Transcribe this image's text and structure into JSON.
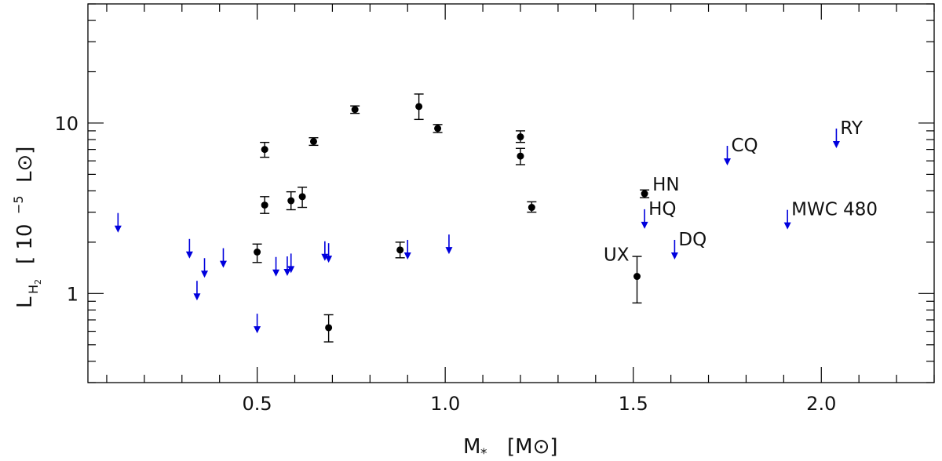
{
  "chart_data": {
    "type": "scatter",
    "xlabel": "M* [M⊙]",
    "xlabel_parts": {
      "main": "M",
      "sub": "*",
      "unit": "[M⊙]"
    },
    "ylabel": "L_H2 [ 10^-5 L⊙]",
    "ylabel_parts": {
      "main": "L",
      "sub": "H",
      "subsub": "2",
      "unit_open": "[ 10",
      "exp": "−5",
      "unit_close": "L⊙]"
    },
    "xlim": [
      0.05,
      2.3
    ],
    "ylim": [
      0.3,
      50
    ],
    "yscale": "log",
    "x_major_ticks": [
      0.5,
      1.0,
      1.5,
      2.0
    ],
    "x_tick_labels": [
      "0.5",
      "1.0",
      "1.5",
      "2.0"
    ],
    "x_minor_step": 0.1,
    "y_major_ticks": [
      1,
      10
    ],
    "y_tick_labels": [
      "1",
      "10"
    ],
    "colors": {
      "detection": "#000000",
      "upper_limit": "#0000dd",
      "axis": "#000000"
    },
    "series": [
      {
        "kind": "detection",
        "points": [
          {
            "x": 0.52,
            "y": 7.0,
            "ylo": 6.3,
            "yhi": 7.7
          },
          {
            "x": 0.52,
            "y": 3.3,
            "ylo": 2.95,
            "yhi": 3.7
          },
          {
            "x": 0.5,
            "y": 1.75,
            "ylo": 1.52,
            "yhi": 1.95
          },
          {
            "x": 0.59,
            "y": 3.5,
            "ylo": 3.1,
            "yhi": 3.95
          },
          {
            "x": 0.62,
            "y": 3.7,
            "ylo": 3.2,
            "yhi": 4.2
          },
          {
            "x": 0.65,
            "y": 7.8,
            "ylo": 7.4,
            "yhi": 8.2
          },
          {
            "x": 0.69,
            "y": 0.63,
            "ylo": 0.52,
            "yhi": 0.75
          },
          {
            "x": 0.76,
            "y": 12.0,
            "ylo": 11.4,
            "yhi": 12.6
          },
          {
            "x": 0.88,
            "y": 1.8,
            "ylo": 1.62,
            "yhi": 2.0
          },
          {
            "x": 0.93,
            "y": 12.5,
            "ylo": 10.5,
            "yhi": 14.8
          },
          {
            "x": 0.98,
            "y": 9.3,
            "ylo": 8.8,
            "yhi": 9.8
          },
          {
            "x": 1.2,
            "y": 8.3,
            "ylo": 7.7,
            "yhi": 9.0
          },
          {
            "x": 1.2,
            "y": 6.4,
            "ylo": 5.7,
            "yhi": 7.1
          },
          {
            "x": 1.23,
            "y": 3.2,
            "ylo": 3.0,
            "yhi": 3.45
          },
          {
            "x": 1.51,
            "y": 1.26,
            "ylo": 0.88,
            "yhi": 1.65,
            "label": "UX"
          },
          {
            "x": 1.53,
            "y": 3.85,
            "ylo": 3.65,
            "yhi": 4.05,
            "label": "HN"
          }
        ]
      },
      {
        "kind": "upper_limit",
        "points": [
          {
            "x": 0.13,
            "y": 2.3
          },
          {
            "x": 0.32,
            "y": 1.62
          },
          {
            "x": 0.34,
            "y": 0.92
          },
          {
            "x": 0.36,
            "y": 1.25
          },
          {
            "x": 0.41,
            "y": 1.43
          },
          {
            "x": 0.5,
            "y": 0.59
          },
          {
            "x": 0.55,
            "y": 1.27
          },
          {
            "x": 0.58,
            "y": 1.28
          },
          {
            "x": 0.59,
            "y": 1.33
          },
          {
            "x": 0.68,
            "y": 1.57
          },
          {
            "x": 0.69,
            "y": 1.53
          },
          {
            "x": 0.9,
            "y": 1.6
          },
          {
            "x": 1.01,
            "y": 1.72
          },
          {
            "x": 1.53,
            "y": 2.42,
            "label": "HQ"
          },
          {
            "x": 1.61,
            "y": 1.6,
            "label": "DQ"
          },
          {
            "x": 1.75,
            "y": 5.7,
            "label": "CQ"
          },
          {
            "x": 1.91,
            "y": 2.4,
            "label": "MWC 480"
          },
          {
            "x": 2.04,
            "y": 7.2,
            "label": "RY"
          }
        ]
      }
    ]
  }
}
